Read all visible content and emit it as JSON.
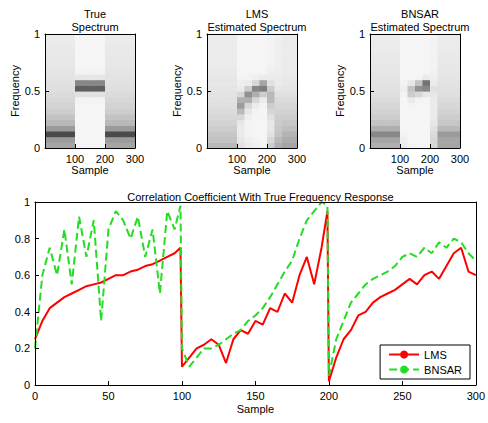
{
  "chart_data": [
    {
      "type": "heatmap",
      "title": "True Spectrum",
      "xlabel": "Sample",
      "ylabel": "Frequency",
      "xlim": [
        0,
        300
      ],
      "ylim": [
        0,
        1
      ],
      "xticks": [
        100,
        200,
        300
      ],
      "yticks": [
        0,
        0.5,
        1
      ],
      "grid": false,
      "x_bins": [
        0,
        25,
        50,
        75,
        100,
        125,
        150,
        175,
        200,
        225,
        250,
        275,
        300
      ],
      "y_bins": [
        0,
        0.05,
        0.1,
        0.15,
        0.2,
        0.25,
        0.3,
        0.35,
        0.4,
        0.45,
        0.5,
        0.55,
        0.6,
        0.65,
        0.7,
        0.75,
        0.8,
        0.85,
        0.9,
        0.95,
        1
      ],
      "cells": [
        [
          0.45,
          0.5,
          0.9,
          0.5,
          0.35,
          0.3,
          0.25,
          0.22,
          0.2,
          0.18,
          0.16,
          0.15,
          0.14,
          0.13,
          0.12,
          0.12,
          0.11,
          0.11,
          0.1,
          0.1
        ],
        [
          0.45,
          0.5,
          0.9,
          0.5,
          0.35,
          0.3,
          0.25,
          0.22,
          0.2,
          0.18,
          0.16,
          0.15,
          0.14,
          0.13,
          0.12,
          0.12,
          0.11,
          0.11,
          0.1,
          0.1
        ],
        [
          0.45,
          0.5,
          0.9,
          0.5,
          0.35,
          0.3,
          0.25,
          0.22,
          0.2,
          0.18,
          0.16,
          0.15,
          0.14,
          0.13,
          0.12,
          0.12,
          0.11,
          0.11,
          0.1,
          0.1
        ],
        [
          0.45,
          0.5,
          0.9,
          0.5,
          0.35,
          0.3,
          0.25,
          0.22,
          0.2,
          0.18,
          0.16,
          0.15,
          0.14,
          0.13,
          0.12,
          0.12,
          0.11,
          0.11,
          0.1,
          0.1
        ],
        [
          0.05,
          0.05,
          0.05,
          0.05,
          0.05,
          0.05,
          0.05,
          0.05,
          0.06,
          0.15,
          0.8,
          0.6,
          0.12,
          0.06,
          0.05,
          0.05,
          0.05,
          0.05,
          0.05,
          0.05
        ],
        [
          0.05,
          0.05,
          0.05,
          0.05,
          0.05,
          0.05,
          0.05,
          0.05,
          0.06,
          0.15,
          0.8,
          0.6,
          0.12,
          0.06,
          0.05,
          0.05,
          0.05,
          0.05,
          0.05,
          0.05
        ],
        [
          0.05,
          0.05,
          0.05,
          0.05,
          0.05,
          0.05,
          0.05,
          0.05,
          0.06,
          0.15,
          0.8,
          0.6,
          0.12,
          0.06,
          0.05,
          0.05,
          0.05,
          0.05,
          0.05,
          0.05
        ],
        [
          0.05,
          0.05,
          0.05,
          0.05,
          0.05,
          0.05,
          0.05,
          0.05,
          0.06,
          0.15,
          0.8,
          0.6,
          0.12,
          0.06,
          0.05,
          0.05,
          0.05,
          0.05,
          0.05,
          0.05
        ],
        [
          0.45,
          0.5,
          0.9,
          0.5,
          0.35,
          0.3,
          0.25,
          0.22,
          0.2,
          0.18,
          0.16,
          0.15,
          0.14,
          0.13,
          0.12,
          0.12,
          0.11,
          0.11,
          0.1,
          0.1
        ],
        [
          0.45,
          0.5,
          0.9,
          0.5,
          0.35,
          0.3,
          0.25,
          0.22,
          0.2,
          0.18,
          0.16,
          0.15,
          0.14,
          0.13,
          0.12,
          0.12,
          0.11,
          0.11,
          0.1,
          0.1
        ],
        [
          0.45,
          0.5,
          0.9,
          0.5,
          0.35,
          0.3,
          0.25,
          0.22,
          0.2,
          0.18,
          0.16,
          0.15,
          0.14,
          0.13,
          0.12,
          0.12,
          0.11,
          0.11,
          0.1,
          0.1
        ],
        [
          0.45,
          0.5,
          0.9,
          0.5,
          0.35,
          0.3,
          0.25,
          0.22,
          0.2,
          0.18,
          0.16,
          0.15,
          0.14,
          0.13,
          0.12,
          0.12,
          0.11,
          0.11,
          0.1,
          0.1
        ]
      ]
    },
    {
      "type": "heatmap",
      "title": "LMS Estimated Spectrum",
      "xlabel": "Sample",
      "ylabel": "Frequency",
      "xlim": [
        0,
        300
      ],
      "ylim": [
        0,
        1
      ],
      "xticks": [
        100,
        200,
        300
      ],
      "yticks": [
        0,
        0.5,
        1
      ],
      "grid": false,
      "x_bins": [
        0,
        25,
        50,
        75,
        100,
        125,
        150,
        175,
        200,
        225,
        250,
        275,
        300
      ],
      "y_bins": [
        0,
        0.05,
        0.1,
        0.15,
        0.2,
        0.25,
        0.3,
        0.35,
        0.4,
        0.45,
        0.5,
        0.55,
        0.6,
        0.65,
        0.7,
        0.75,
        0.8,
        0.85,
        0.9,
        0.95,
        1
      ],
      "cells": [
        [
          0.35,
          0.3,
          0.28,
          0.25,
          0.22,
          0.2,
          0.18,
          0.16,
          0.15,
          0.14,
          0.13,
          0.12,
          0.12,
          0.11,
          0.1,
          0.1,
          0.1,
          0.1,
          0.1,
          0.1
        ],
        [
          0.35,
          0.3,
          0.28,
          0.25,
          0.22,
          0.2,
          0.18,
          0.16,
          0.15,
          0.14,
          0.13,
          0.12,
          0.12,
          0.11,
          0.1,
          0.1,
          0.1,
          0.1,
          0.1,
          0.1
        ],
        [
          0.35,
          0.3,
          0.28,
          0.25,
          0.22,
          0.2,
          0.18,
          0.16,
          0.15,
          0.14,
          0.13,
          0.12,
          0.12,
          0.11,
          0.1,
          0.1,
          0.1,
          0.1,
          0.1,
          0.1
        ],
        [
          0.35,
          0.3,
          0.28,
          0.25,
          0.22,
          0.2,
          0.18,
          0.16,
          0.15,
          0.14,
          0.13,
          0.12,
          0.12,
          0.11,
          0.1,
          0.1,
          0.1,
          0.1,
          0.1,
          0.1
        ],
        [
          0.15,
          0.12,
          0.1,
          0.1,
          0.12,
          0.2,
          0.35,
          0.5,
          0.4,
          0.2,
          0.1,
          0.08,
          0.06,
          0.05,
          0.05,
          0.05,
          0.05,
          0.05,
          0.05,
          0.05
        ],
        [
          0.1,
          0.08,
          0.06,
          0.06,
          0.06,
          0.08,
          0.12,
          0.2,
          0.4,
          0.55,
          0.25,
          0.1,
          0.06,
          0.05,
          0.05,
          0.05,
          0.05,
          0.05,
          0.05,
          0.05
        ],
        [
          0.08,
          0.06,
          0.05,
          0.05,
          0.05,
          0.05,
          0.06,
          0.1,
          0.2,
          0.4,
          0.6,
          0.2,
          0.08,
          0.05,
          0.05,
          0.05,
          0.05,
          0.05,
          0.05,
          0.05
        ],
        [
          0.06,
          0.05,
          0.05,
          0.05,
          0.05,
          0.05,
          0.05,
          0.06,
          0.1,
          0.25,
          0.65,
          0.45,
          0.1,
          0.05,
          0.05,
          0.05,
          0.05,
          0.05,
          0.05,
          0.05
        ],
        [
          0.25,
          0.2,
          0.15,
          0.12,
          0.12,
          0.15,
          0.2,
          0.25,
          0.35,
          0.35,
          0.25,
          0.15,
          0.1,
          0.08,
          0.07,
          0.06,
          0.06,
          0.06,
          0.06,
          0.06
        ],
        [
          0.4,
          0.35,
          0.3,
          0.28,
          0.26,
          0.25,
          0.22,
          0.2,
          0.18,
          0.15,
          0.12,
          0.1,
          0.1,
          0.09,
          0.08,
          0.08,
          0.08,
          0.08,
          0.08,
          0.08
        ],
        [
          0.45,
          0.42,
          0.38,
          0.32,
          0.28,
          0.25,
          0.22,
          0.2,
          0.18,
          0.15,
          0.13,
          0.12,
          0.11,
          0.1,
          0.1,
          0.1,
          0.1,
          0.1,
          0.1,
          0.1
        ],
        [
          0.45,
          0.42,
          0.38,
          0.32,
          0.28,
          0.25,
          0.22,
          0.2,
          0.18,
          0.15,
          0.13,
          0.12,
          0.11,
          0.1,
          0.1,
          0.1,
          0.1,
          0.1,
          0.1,
          0.1
        ]
      ]
    },
    {
      "type": "heatmap",
      "title": "BNSAR Estimated Spectrum",
      "xlabel": "Sample",
      "ylabel": "Frequency",
      "xlim": [
        0,
        300
      ],
      "ylim": [
        0,
        1
      ],
      "xticks": [
        100,
        200,
        300
      ],
      "yticks": [
        0,
        0.5,
        1
      ],
      "grid": false,
      "x_bins": [
        0,
        25,
        50,
        75,
        100,
        125,
        150,
        175,
        200,
        225,
        250,
        275,
        300
      ],
      "y_bins": [
        0,
        0.05,
        0.1,
        0.15,
        0.2,
        0.25,
        0.3,
        0.35,
        0.4,
        0.45,
        0.5,
        0.55,
        0.6,
        0.65,
        0.7,
        0.75,
        0.8,
        0.85,
        0.9,
        0.95,
        1
      ],
      "cells": [
        [
          0.4,
          0.45,
          0.6,
          0.4,
          0.3,
          0.25,
          0.22,
          0.2,
          0.18,
          0.16,
          0.15,
          0.14,
          0.13,
          0.12,
          0.12,
          0.11,
          0.11,
          0.1,
          0.1,
          0.1
        ],
        [
          0.4,
          0.45,
          0.6,
          0.4,
          0.3,
          0.25,
          0.22,
          0.2,
          0.18,
          0.16,
          0.15,
          0.14,
          0.13,
          0.12,
          0.12,
          0.11,
          0.11,
          0.1,
          0.1,
          0.1
        ],
        [
          0.4,
          0.45,
          0.6,
          0.4,
          0.3,
          0.25,
          0.22,
          0.2,
          0.18,
          0.16,
          0.15,
          0.14,
          0.13,
          0.12,
          0.12,
          0.11,
          0.11,
          0.1,
          0.1,
          0.1
        ],
        [
          0.4,
          0.45,
          0.6,
          0.4,
          0.3,
          0.25,
          0.22,
          0.2,
          0.18,
          0.16,
          0.15,
          0.14,
          0.13,
          0.12,
          0.12,
          0.11,
          0.11,
          0.1,
          0.1,
          0.1
        ],
        [
          0.1,
          0.08,
          0.06,
          0.05,
          0.05,
          0.05,
          0.05,
          0.05,
          0.05,
          0.06,
          0.08,
          0.06,
          0.05,
          0.05,
          0.05,
          0.05,
          0.05,
          0.05,
          0.05,
          0.05
        ],
        [
          0.06,
          0.05,
          0.05,
          0.05,
          0.05,
          0.05,
          0.05,
          0.06,
          0.1,
          0.25,
          0.3,
          0.12,
          0.05,
          0.05,
          0.05,
          0.05,
          0.05,
          0.05,
          0.05,
          0.05
        ],
        [
          0.05,
          0.05,
          0.05,
          0.05,
          0.05,
          0.05,
          0.05,
          0.05,
          0.06,
          0.2,
          0.55,
          0.3,
          0.06,
          0.05,
          0.05,
          0.05,
          0.05,
          0.05,
          0.05,
          0.05
        ],
        [
          0.05,
          0.05,
          0.05,
          0.05,
          0.05,
          0.05,
          0.05,
          0.05,
          0.05,
          0.12,
          0.6,
          0.7,
          0.1,
          0.05,
          0.05,
          0.05,
          0.05,
          0.05,
          0.05,
          0.05
        ],
        [
          0.2,
          0.2,
          0.18,
          0.15,
          0.12,
          0.1,
          0.1,
          0.1,
          0.1,
          0.12,
          0.15,
          0.1,
          0.08,
          0.07,
          0.06,
          0.06,
          0.06,
          0.06,
          0.06,
          0.06
        ],
        [
          0.45,
          0.45,
          0.5,
          0.35,
          0.28,
          0.25,
          0.22,
          0.2,
          0.18,
          0.16,
          0.15,
          0.14,
          0.13,
          0.12,
          0.12,
          0.11,
          0.11,
          0.1,
          0.1,
          0.1
        ],
        [
          0.45,
          0.45,
          0.5,
          0.35,
          0.28,
          0.25,
          0.22,
          0.2,
          0.18,
          0.16,
          0.15,
          0.14,
          0.13,
          0.12,
          0.12,
          0.11,
          0.11,
          0.1,
          0.1,
          0.1
        ],
        [
          0.45,
          0.45,
          0.5,
          0.35,
          0.28,
          0.25,
          0.22,
          0.2,
          0.18,
          0.16,
          0.15,
          0.14,
          0.13,
          0.12,
          0.12,
          0.11,
          0.11,
          0.1,
          0.1,
          0.1
        ]
      ]
    },
    {
      "type": "line",
      "title": "Correlation Coefficient With True Frequency Response",
      "xlabel": "Sample",
      "xlim": [
        0,
        300
      ],
      "ylim": [
        0,
        1
      ],
      "xticks": [
        0,
        50,
        100,
        150,
        200,
        250,
        300
      ],
      "yticks": [
        0,
        0.2,
        0.4,
        0.6,
        0.8,
        1
      ],
      "grid": false,
      "legend": "lower right",
      "x": [
        0,
        5,
        10,
        15,
        20,
        25,
        30,
        35,
        40,
        45,
        50,
        55,
        60,
        65,
        70,
        75,
        80,
        85,
        90,
        95,
        99,
        100,
        105,
        110,
        115,
        120,
        125,
        130,
        135,
        140,
        145,
        150,
        155,
        160,
        165,
        170,
        175,
        180,
        185,
        190,
        195,
        199,
        200,
        205,
        210,
        215,
        220,
        225,
        230,
        235,
        240,
        245,
        250,
        255,
        260,
        265,
        270,
        275,
        280,
        285,
        290,
        295,
        300
      ],
      "series": [
        {
          "name": "LMS",
          "color": "#ff0000",
          "line_style": "solid",
          "values": [
            0.25,
            0.35,
            0.42,
            0.45,
            0.48,
            0.5,
            0.52,
            0.54,
            0.55,
            0.56,
            0.58,
            0.6,
            0.6,
            0.62,
            0.63,
            0.65,
            0.66,
            0.68,
            0.7,
            0.72,
            0.75,
            0.1,
            0.15,
            0.2,
            0.22,
            0.25,
            0.22,
            0.12,
            0.25,
            0.3,
            0.28,
            0.35,
            0.33,
            0.42,
            0.4,
            0.5,
            0.45,
            0.6,
            0.7,
            0.55,
            0.75,
            0.95,
            0.02,
            0.15,
            0.25,
            0.3,
            0.38,
            0.4,
            0.45,
            0.48,
            0.5,
            0.52,
            0.55,
            0.58,
            0.55,
            0.6,
            0.62,
            0.58,
            0.65,
            0.72,
            0.75,
            0.62,
            0.6
          ]
        },
        {
          "name": "BNSAR",
          "color": "#22dd22",
          "line_style": "dashed",
          "values": [
            0.2,
            0.6,
            0.75,
            0.6,
            0.85,
            0.55,
            0.92,
            0.7,
            0.9,
            0.35,
            0.85,
            0.95,
            0.9,
            0.8,
            0.92,
            0.7,
            0.85,
            0.5,
            0.95,
            0.85,
            0.98,
            0.2,
            0.1,
            0.15,
            0.2,
            0.2,
            0.22,
            0.25,
            0.28,
            0.3,
            0.35,
            0.38,
            0.42,
            0.48,
            0.55,
            0.62,
            0.68,
            0.8,
            0.9,
            0.95,
            1.0,
            0.98,
            0.05,
            0.25,
            0.35,
            0.45,
            0.5,
            0.55,
            0.58,
            0.6,
            0.62,
            0.65,
            0.7,
            0.72,
            0.7,
            0.75,
            0.72,
            0.78,
            0.75,
            0.8,
            0.78,
            0.72,
            0.68
          ]
        }
      ]
    }
  ]
}
